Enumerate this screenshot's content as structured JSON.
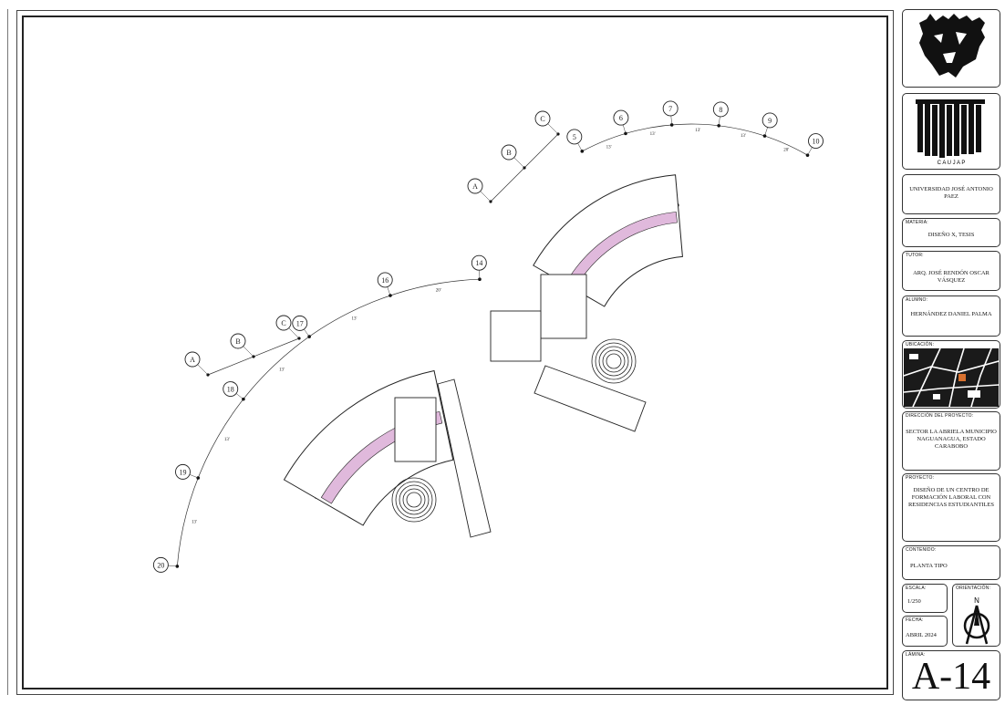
{
  "title_block": {
    "university": "UNIVERSIDAD JOSÉ ANTONIO PAEZ",
    "logo2_text": "C A U J A P",
    "materia_label": "MATERIA:",
    "materia": "DISEÑO X, TESIS",
    "tutor_label": "TUTOR:",
    "tutor": "ARQ. JOSÉ RENDÓN OSCAR VÁSQUEZ",
    "alumno_label": "ALUMNO:",
    "alumno": "HERNÁNDEZ DANIEL PALMA",
    "ubicacion_label": "UBICACIÓN:",
    "direccion_label": "DIRECCIÓN DEL PROYECTO:",
    "direccion": "SECTOR LA ABRIELA MUNICIPIO NAGUANAGUA, ESTADO CARABOBO",
    "proyecto_label": "PROYECTO:",
    "proyecto": "DISEÑO DE UN CENTRO DE FORMACIÓN LABORAL CON RESIDENCIAS ESTUDIANTILES",
    "contenido_label": "CONTENIDO:",
    "contenido": "PLANTA TIPO",
    "escala_label": "ESCALA:",
    "escala": "1/250",
    "fecha_label": "FECHA:",
    "fecha": "ABRIL 2024",
    "norte_label": "ORIENTACIÓN:",
    "norte_letter": "N",
    "lamina_label": "LÁMINA:",
    "lamina": "A-14"
  },
  "plan": {
    "upper_grid_letters": [
      "A",
      "B",
      "C"
    ],
    "upper_grid_numbers": [
      "5",
      "6",
      "7",
      "8",
      "9",
      "10"
    ],
    "lower_grid_letters": [
      "A",
      "B",
      "C"
    ],
    "lower_grid_numbers": [
      "20",
      "19",
      "18",
      "17",
      "16",
      "14"
    ],
    "dim_upper": [
      "13'",
      "13'",
      "13'",
      "13'",
      "20'"
    ],
    "dim_lower": [
      "13'",
      "13'",
      "13'",
      "13'",
      "20'"
    ],
    "colors": {
      "highlight": "#c77fc0",
      "line": "#222222",
      "furniture": "#111111"
    }
  }
}
